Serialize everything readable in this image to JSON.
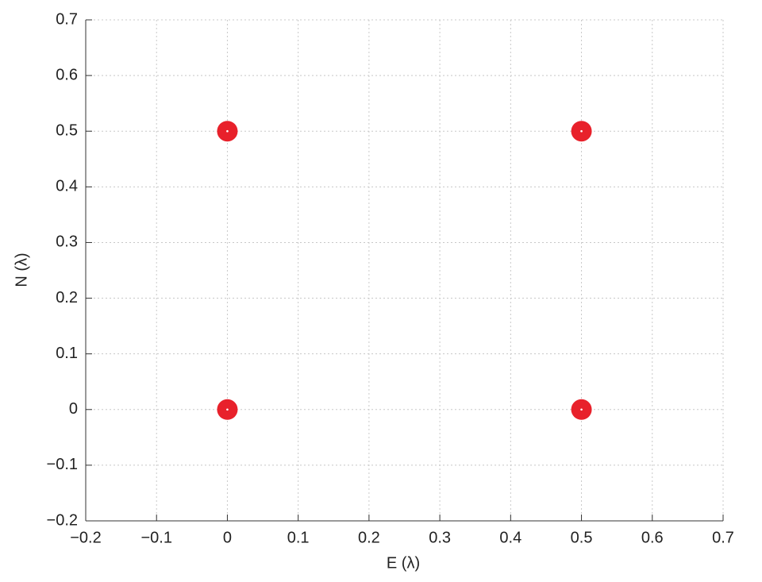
{
  "chart_data": {
    "type": "scatter",
    "xlabel": "E (λ)",
    "ylabel": "N (λ)",
    "x": [
      0,
      0,
      0.5,
      0.5
    ],
    "y": [
      0,
      0.5,
      0,
      0.5
    ],
    "color": "#e8212b",
    "xlim": [
      -0.2,
      0.7
    ],
    "ylim": [
      -0.2,
      0.7
    ],
    "xticks": [
      {
        "value": -0.2,
        "label": "−0.2"
      },
      {
        "value": -0.1,
        "label": "−0.1"
      },
      0,
      0.1,
      0.2,
      0.3,
      0.4,
      0.5,
      0.6,
      0.7
    ],
    "yticks": [
      {
        "value": -0.2,
        "label": "−0.2"
      },
      {
        "value": -0.1,
        "label": "−0.1"
      },
      0,
      0.1,
      0.2,
      0.3,
      0.4,
      0.5,
      0.6,
      0.7
    ],
    "grid": true
  }
}
